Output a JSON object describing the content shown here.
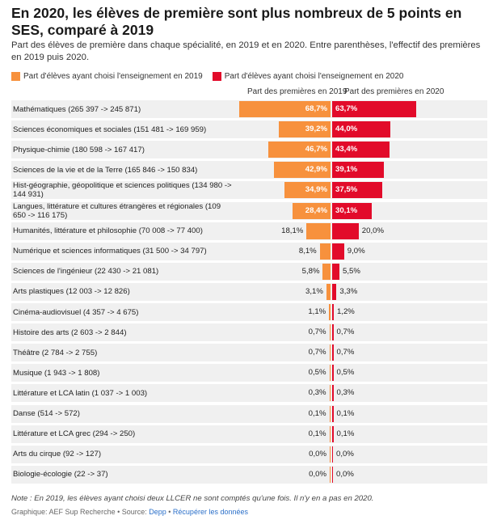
{
  "title": "En 2020, les élèves de première sont plus nombreux de 5 points en SES, comparé à 2019",
  "subtitle": "Part des élèves de première dans chaque spécialité, en 2019 et en 2020. Entre parenthèses, l'effectif des premières en 2019 puis 2020.",
  "legend": {
    "left": "Part d'élèves ayant choisi l'enseignement en 2019",
    "right": "Part d'élèves ayant choisi l'enseignement en 2020"
  },
  "columns": {
    "left": "Part des premières en 2019",
    "right": "Part des premières en 2020"
  },
  "colors": {
    "y2019": "#f7913d",
    "y2020": "#e20b2a",
    "row_bg": "#f0f0f0"
  },
  "note": "Note : En 2019, les élèves ayant choisi deux LLCER ne sont comptés qu'une fois. Il n'y en a pas en 2020.",
  "credit": {
    "prefix": "Graphique: AEF Sup Recherche • Source: ",
    "source": "Depp",
    "sep": " • ",
    "link": "Récupérer les données"
  },
  "chart_data": {
    "type": "bar",
    "title": "En 2020, les élèves de première sont plus nombreux de 5 points en SES, comparé à 2019",
    "categories": [
      "Mathématiques (265 397 -> 245 871)",
      "Sciences économiques et sociales (151 481 -> 169 959)",
      "Physique-chimie (180 598 -> 167 417)",
      "Sciences de la vie et de la Terre (165 846 -> 150 834)",
      "Hist-géographie, géopolitique et sciences politiques (134 980 -> 144 931)",
      "Langues, littérature et cultures étrangères et régionales (109 650 -> 116 175)",
      "Humanités, littérature et philosophie (70 008 -> 77 400)",
      "Numérique et sciences informatiques (31 500 -> 34 797)",
      "Sciences de l'ingénieur (22 430 -> 21 081)",
      "Arts plastiques (12 003 -> 12 826)",
      "Cinéma-audiovisuel (4 357 -> 4 675)",
      "Histoire des arts (2 603 -> 2 844)",
      "Théâtre (2 784 -> 2 755)",
      "Musique (1 943 -> 1 808)",
      "Littérature et LCA latin (1 037 -> 1 003)",
      "Danse (514 -> 572)",
      "Littérature et LCA grec (294 -> 250)",
      "Arts du cirque (92 -> 127)",
      "Biologie-écologie (22 -> 37)"
    ],
    "series": [
      {
        "name": "Part des premières en 2019",
        "values": [
          68.7,
          39.2,
          46.7,
          42.9,
          34.9,
          28.4,
          18.1,
          8.1,
          5.8,
          3.1,
          1.1,
          0.7,
          0.7,
          0.5,
          0.3,
          0.1,
          0.1,
          0.0,
          0.0
        ],
        "labels": [
          "68,7%",
          "39,2%",
          "46,7%",
          "42,9%",
          "34,9%",
          "28,4%",
          "18,1%",
          "8,1%",
          "5,8%",
          "3,1%",
          "1,1%",
          "0,7%",
          "0,7%",
          "0,5%",
          "0,3%",
          "0,1%",
          "0,1%",
          "0,0%",
          "0,0%"
        ]
      },
      {
        "name": "Part des premières en 2020",
        "values": [
          63.7,
          44.0,
          43.4,
          39.1,
          37.5,
          30.1,
          20.0,
          9.0,
          5.5,
          3.3,
          1.2,
          0.7,
          0.7,
          0.5,
          0.3,
          0.1,
          0.1,
          0.0,
          0.0
        ],
        "labels": [
          "63,7%",
          "44,0%",
          "43,4%",
          "39,1%",
          "37,5%",
          "30,1%",
          "20,0%",
          "9,0%",
          "5,5%",
          "3,3%",
          "1,2%",
          "0,7%",
          "0,7%",
          "0,5%",
          "0,3%",
          "0,1%",
          "0,1%",
          "0,0%",
          "0,0%"
        ]
      }
    ],
    "xlim": [
      0,
      100
    ],
    "legend_position": "top-left"
  }
}
